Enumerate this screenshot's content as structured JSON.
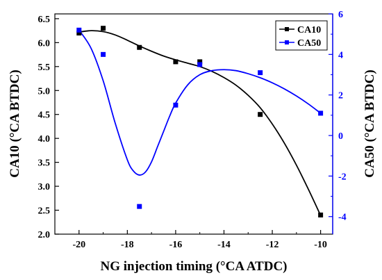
{
  "chart_data": {
    "type": "scatter",
    "title": "",
    "xlabel": "NG injection timing (°CA ATDC)",
    "ylabel_left": "CA10 (°CA BTDC)",
    "ylabel_right": "CA50 (°CA BTDC)",
    "xlim": [
      -21,
      -9.5
    ],
    "ylim_left": [
      2.0,
      6.6
    ],
    "ylim_right": [
      -4.866,
      6.0
    ],
    "x_ticks": [
      -20,
      -18,
      -16,
      -14,
      -12,
      -10
    ],
    "x_tick_labels": [
      "-20",
      "-18",
      "-16",
      "-14",
      "-12",
      "-10"
    ],
    "y_left_ticks": [
      2.0,
      2.5,
      3.0,
      3.5,
      4.0,
      4.5,
      5.0,
      5.5,
      6.0,
      6.5
    ],
    "y_left_tick_labels": [
      "2.0",
      "2.5",
      "3.0",
      "3.5",
      "4.0",
      "4.5",
      "5.0",
      "5.5",
      "6.0",
      "6.5"
    ],
    "y_right_ticks": [
      -4,
      -2,
      0,
      2,
      4,
      6
    ],
    "y_right_tick_labels": [
      "-4",
      "-2",
      "0",
      "2",
      "4",
      "6"
    ],
    "legend_position": "top-right",
    "series": [
      {
        "name": "CA10",
        "axis": "left",
        "color": "#000000",
        "x": [
          -20,
          -19,
          -17.5,
          -16,
          -15,
          -12.5,
          -10
        ],
        "y": [
          6.2,
          6.3,
          5.9,
          5.6,
          5.6,
          4.5,
          2.4
        ],
        "fit_curve": {
          "x": [
            -20,
            -19.5,
            -19,
            -18.5,
            -18,
            -17.5,
            -17,
            -16.5,
            -16,
            -15.5,
            -15,
            -14.5,
            -14,
            -13.5,
            -13,
            -12.5,
            -12,
            -11.5,
            -11,
            -10.5,
            -10
          ],
          "y": [
            6.22,
            6.25,
            6.23,
            6.16,
            6.05,
            5.93,
            5.82,
            5.72,
            5.64,
            5.57,
            5.5,
            5.4,
            5.27,
            5.11,
            4.9,
            4.64,
            4.3,
            3.9,
            3.44,
            2.93,
            2.39
          ]
        }
      },
      {
        "name": "CA50",
        "axis": "right",
        "color": "#0000ff",
        "x": [
          -20,
          -19,
          -17.5,
          -16,
          -15,
          -12.5,
          -10
        ],
        "y": [
          5.2,
          4.0,
          -3.5,
          1.5,
          3.5,
          3.1,
          1.1
        ],
        "fit_curve": {
          "x": [
            -20,
            -19.5,
            -19,
            -18.5,
            -18,
            -17.75,
            -17.5,
            -17.25,
            -17,
            -16.75,
            -16.5,
            -16.25,
            -16,
            -15.5,
            -15,
            -14.5,
            -14,
            -13.5,
            -13,
            -12.5,
            -12,
            -11.5,
            -11,
            -10.5,
            -10
          ],
          "y": [
            5.2,
            4.3,
            2.7,
            0.6,
            -1.2,
            -1.75,
            -1.95,
            -1.8,
            -1.3,
            -0.55,
            0.2,
            0.95,
            1.6,
            2.5,
            3.0,
            3.2,
            3.25,
            3.2,
            3.05,
            2.85,
            2.6,
            2.3,
            1.95,
            1.55,
            1.1
          ]
        }
      }
    ]
  }
}
